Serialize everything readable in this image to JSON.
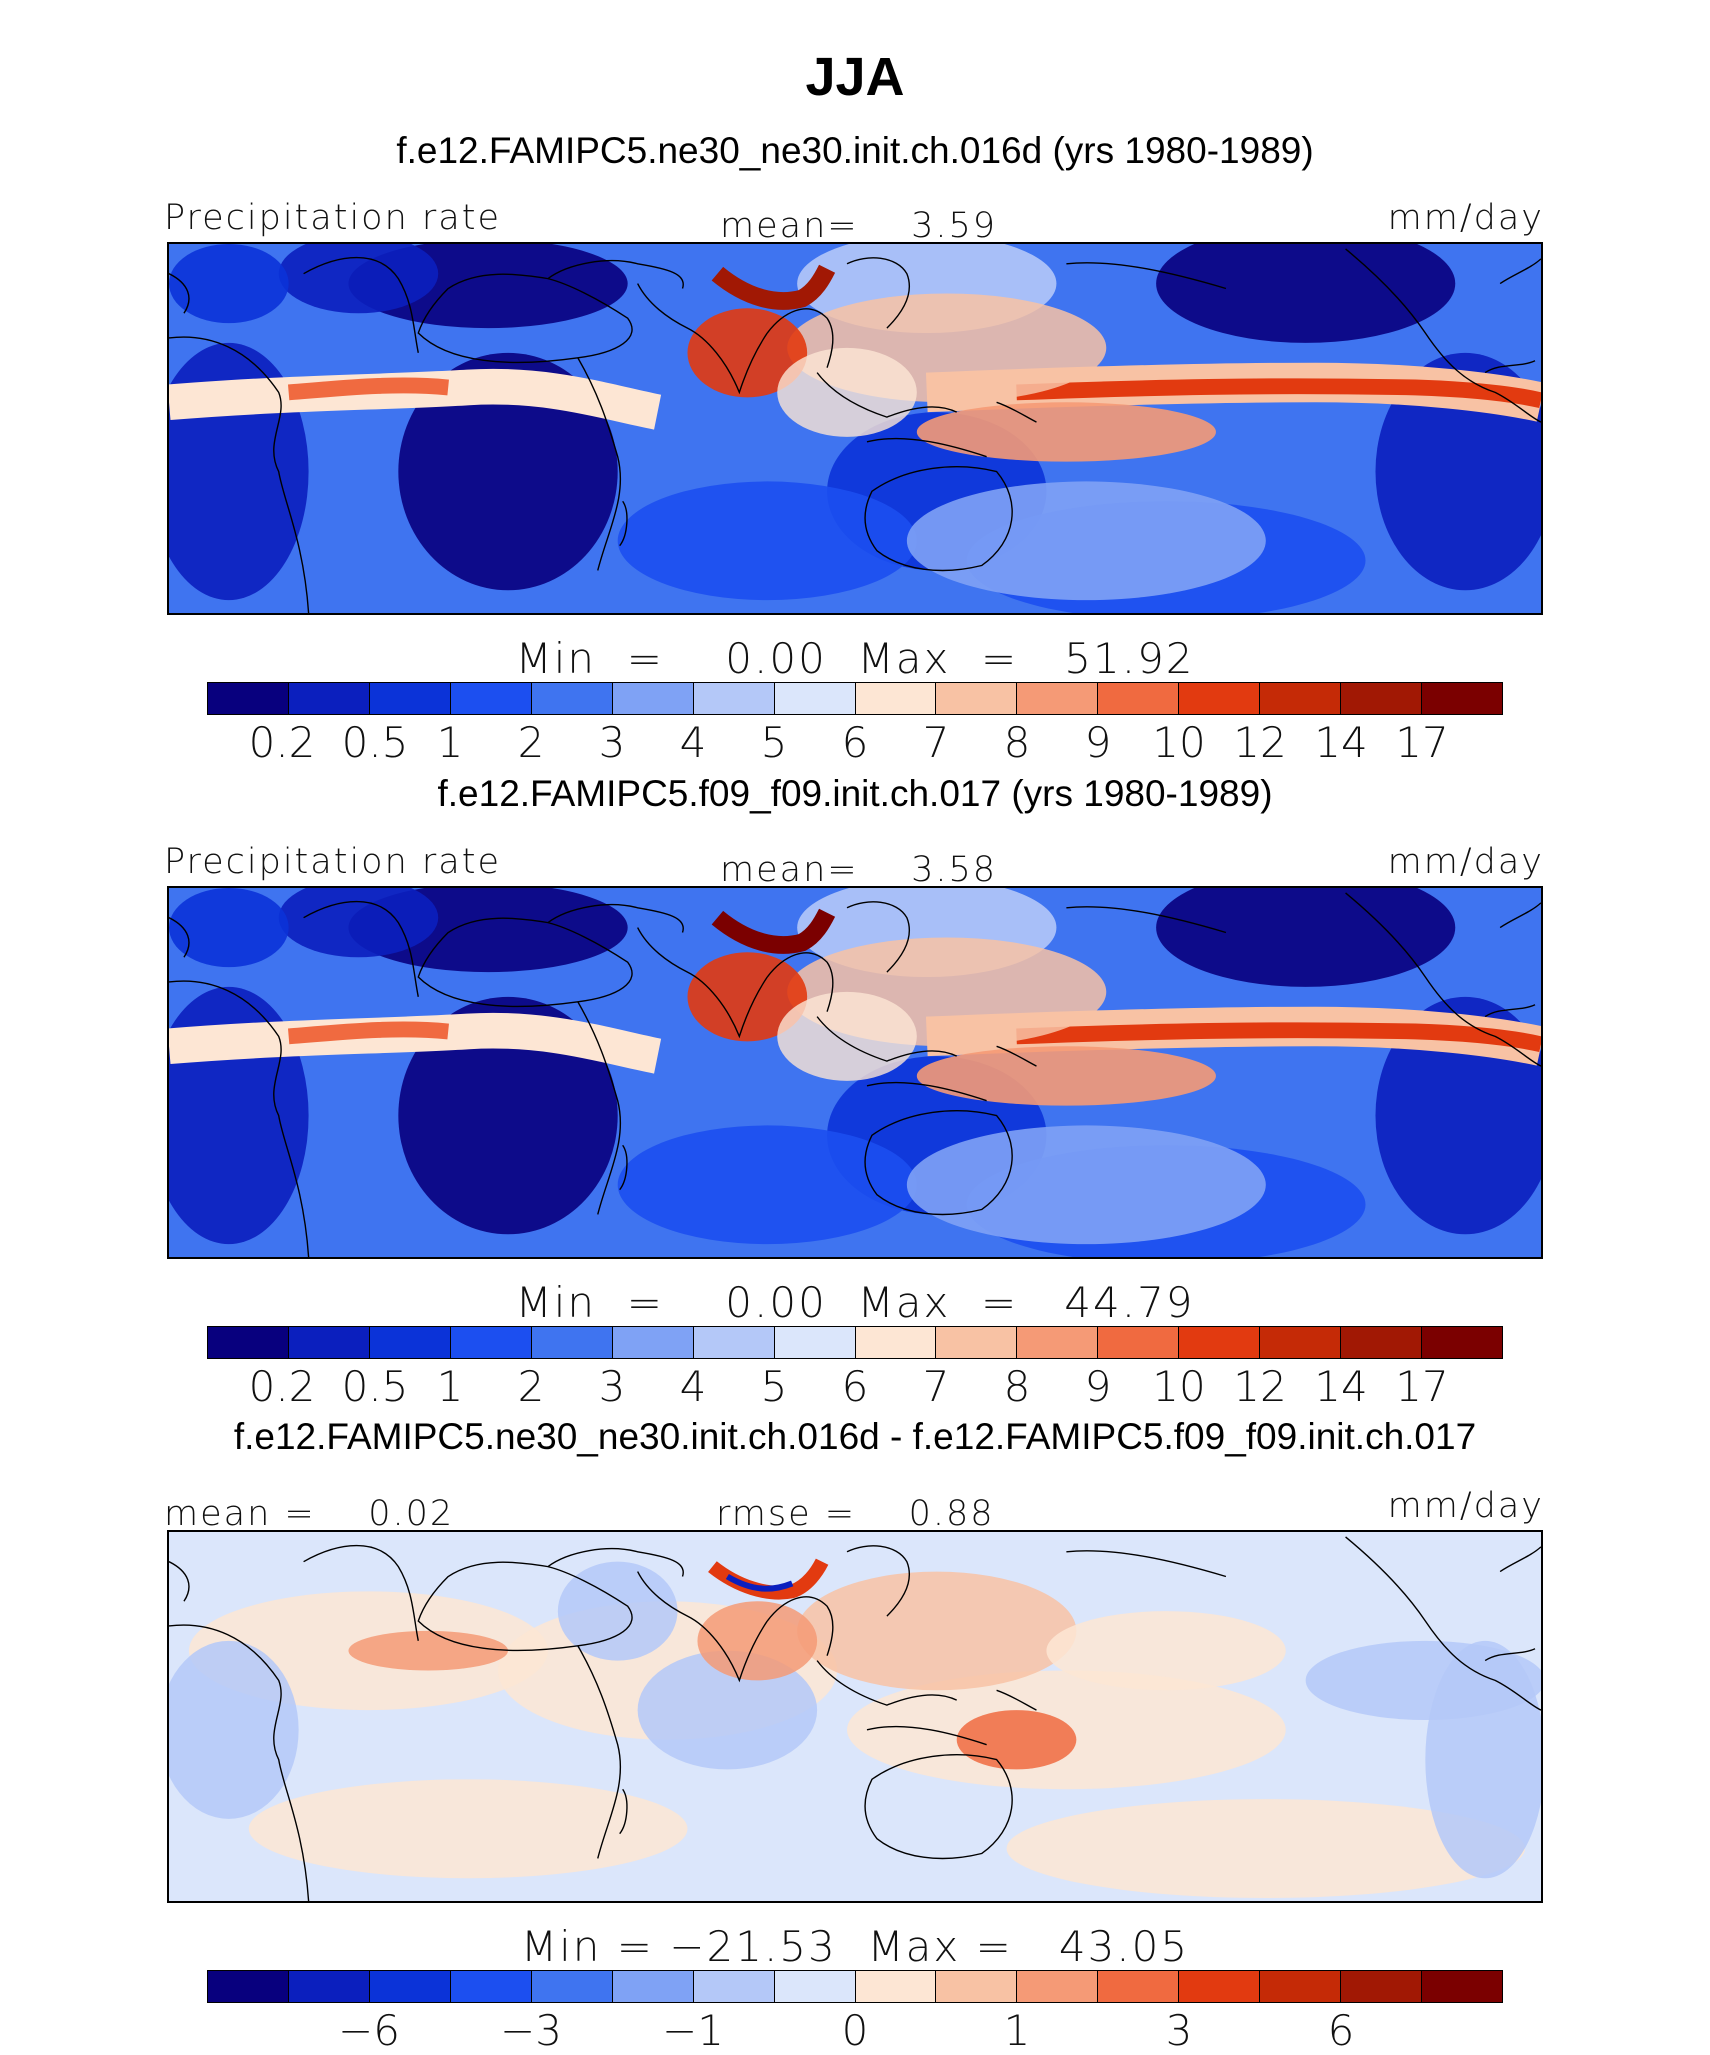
{
  "title": "JJA",
  "colors": {
    "scale": [
      "#08007e",
      "#0b1fbe",
      "#0b33d8",
      "#1c4ff0",
      "#3f74f0",
      "#7fa2f5",
      "#b4c8f8",
      "#dbe6fb",
      "#fde6d4",
      "#f8c2a4",
      "#f59a76",
      "#f06a40",
      "#e23a10",
      "#c52a06",
      "#a11804",
      "#7b0000"
    ],
    "coast": "#000000"
  },
  "panels": [
    {
      "case_title": "f.e12.FAMIPC5.ne30_ne30.init.ch.016d (yrs 1980-1989)",
      "left_label": "Precipitation rate",
      "center_label": "mean=    3.59",
      "right_label": "mm/day",
      "minmax": "Min  =    0.00  Max  =   51.92",
      "ticks": [
        "0.2",
        "0.5",
        "1",
        "2",
        "3",
        "4",
        "5",
        "6",
        "7",
        "8",
        "9",
        "10",
        "12",
        "14",
        "17"
      ]
    },
    {
      "case_title": "f.e12.FAMIPC5.f09_f09.init.ch.017 (yrs 1980-1989)",
      "left_label": "Precipitation rate",
      "center_label": "mean=    3.58",
      "right_label": "mm/day",
      "minmax": "Min  =    0.00  Max  =   44.79",
      "ticks": [
        "0.2",
        "0.5",
        "1",
        "2",
        "3",
        "4",
        "5",
        "6",
        "7",
        "8",
        "9",
        "10",
        "12",
        "14",
        "17"
      ]
    },
    {
      "case_title": "f.e12.FAMIPC5.ne30_ne30.init.ch.016d - f.e12.FAMIPC5.f09_f09.init.ch.017",
      "left_label": "mean =    0.02",
      "center_label": "rmse =    0.88",
      "right_label": "mm/day",
      "minmax": "Min = −21.53  Max =   43.05",
      "ticks": [
        "−6",
        "−3",
        "−1",
        "0",
        "1",
        "3",
        "6"
      ]
    }
  ]
}
